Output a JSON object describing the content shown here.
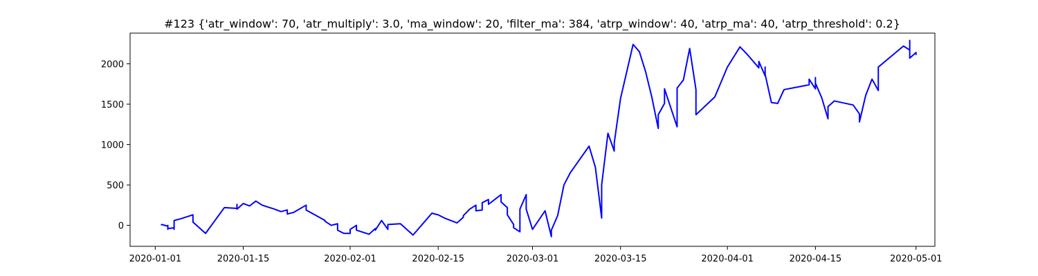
{
  "chart_data": {
    "type": "line",
    "title": "#123 {'atr_window': 70, 'atr_multiply': 3.0, 'ma_window': 20, 'filter_ma': 384, 'atrp_window': 40, 'atrp_ma': 40, 'atrp_threshold': 0.2}",
    "xlabel": "",
    "ylabel": "",
    "x_type": "date",
    "xlim": [
      "2019-12-28",
      "2020-05-04"
    ],
    "ylim": [
      -260,
      2380
    ],
    "x_ticks": [
      "2020-01-01",
      "2020-01-15",
      "2020-02-01",
      "2020-02-15",
      "2020-03-01",
      "2020-03-15",
      "2020-04-01",
      "2020-04-15",
      "2020-05-01"
    ],
    "y_ticks": [
      0,
      500,
      1000,
      1500,
      2000
    ],
    "grid": false,
    "legend": "none",
    "series_color": "#0000ff",
    "series": [
      {
        "points": [
          [
            "2020-01-02",
            0
          ],
          [
            "2020-01-02",
            10
          ],
          [
            "2020-01-03",
            -10
          ],
          [
            "2020-01-03",
            -20
          ],
          [
            "2020-01-03",
            0
          ],
          [
            "2020-01-03",
            -50
          ],
          [
            "2020-01-03",
            -40
          ],
          [
            "2020-01-04",
            -30
          ],
          [
            "2020-01-04",
            -50
          ],
          [
            "2020-01-04",
            60
          ],
          [
            "2020-01-05",
            80
          ],
          [
            "2020-01-07",
            130
          ],
          [
            "2020-01-07",
            120
          ],
          [
            "2020-01-07",
            40
          ],
          [
            "2020-01-09",
            -100
          ],
          [
            "2020-01-12",
            220
          ],
          [
            "2020-01-14",
            210
          ],
          [
            "2020-01-14",
            260
          ],
          [
            "2020-01-14",
            200
          ],
          [
            "2020-01-15",
            270
          ],
          [
            "2020-01-16",
            240
          ],
          [
            "2020-01-17",
            300
          ],
          [
            "2020-01-18",
            250
          ],
          [
            "2020-01-20",
            200
          ],
          [
            "2020-01-21",
            170
          ],
          [
            "2020-01-22",
            190
          ],
          [
            "2020-01-22",
            140
          ],
          [
            "2020-01-23",
            160
          ],
          [
            "2020-01-25",
            250
          ],
          [
            "2020-01-25",
            190
          ],
          [
            "2020-01-28",
            60
          ],
          [
            "2020-01-28",
            50
          ],
          [
            "2020-01-29",
            0
          ],
          [
            "2020-01-30",
            20
          ],
          [
            "2020-01-30",
            -60
          ],
          [
            "2020-01-31",
            -100
          ],
          [
            "2020-02-01",
            -100
          ],
          [
            "2020-02-01",
            -50
          ],
          [
            "2020-02-02",
            0
          ],
          [
            "2020-02-02",
            -60
          ],
          [
            "2020-02-04",
            -110
          ],
          [
            "2020-02-05",
            -40
          ],
          [
            "2020-02-05",
            -60
          ],
          [
            "2020-02-06",
            60
          ],
          [
            "2020-02-07",
            -50
          ],
          [
            "2020-02-07",
            10
          ],
          [
            "2020-02-09",
            20
          ],
          [
            "2020-02-11",
            -120
          ],
          [
            "2020-02-13",
            60
          ],
          [
            "2020-02-14",
            150
          ],
          [
            "2020-02-15",
            130
          ],
          [
            "2020-02-16",
            90
          ],
          [
            "2020-02-18",
            30
          ],
          [
            "2020-02-19",
            100
          ],
          [
            "2020-02-19",
            120
          ],
          [
            "2020-02-20",
            200
          ],
          [
            "2020-02-21",
            250
          ],
          [
            "2020-02-21",
            180
          ],
          [
            "2020-02-22",
            190
          ],
          [
            "2020-02-22",
            280
          ],
          [
            "2020-02-23",
            320
          ],
          [
            "2020-02-23",
            260
          ],
          [
            "2020-02-25",
            380
          ],
          [
            "2020-02-25",
            290
          ],
          [
            "2020-02-26",
            220
          ],
          [
            "2020-02-26",
            130
          ],
          [
            "2020-02-27",
            10
          ],
          [
            "2020-02-27",
            -30
          ],
          [
            "2020-02-28",
            -80
          ],
          [
            "2020-02-28",
            200
          ],
          [
            "2020-02-29",
            380
          ],
          [
            "2020-02-29",
            200
          ],
          [
            "2020-03-01",
            -50
          ],
          [
            "2020-03-03",
            180
          ],
          [
            "2020-03-04",
            -140
          ],
          [
            "2020-03-04",
            -60
          ],
          [
            "2020-03-05",
            120
          ],
          [
            "2020-03-06",
            500
          ],
          [
            "2020-03-07",
            650
          ],
          [
            "2020-03-10",
            980
          ],
          [
            "2020-03-11",
            720
          ],
          [
            "2020-03-12",
            90
          ],
          [
            "2020-03-12",
            500
          ],
          [
            "2020-03-13",
            1140
          ],
          [
            "2020-03-14",
            920
          ],
          [
            "2020-03-14",
            1020
          ],
          [
            "2020-03-15",
            1570
          ],
          [
            "2020-03-17",
            2240
          ],
          [
            "2020-03-18",
            2150
          ],
          [
            "2020-03-19",
            1900
          ],
          [
            "2020-03-20",
            1580
          ],
          [
            "2020-03-21",
            1200
          ],
          [
            "2020-03-21",
            1370
          ],
          [
            "2020-03-22",
            1510
          ],
          [
            "2020-03-22",
            1690
          ],
          [
            "2020-03-24",
            1220
          ],
          [
            "2020-03-24",
            1700
          ],
          [
            "2020-03-25",
            1800
          ],
          [
            "2020-03-26",
            2190
          ],
          [
            "2020-03-27",
            1680
          ],
          [
            "2020-03-27",
            1370
          ],
          [
            "2020-03-30",
            1590
          ],
          [
            "2020-04-01",
            1960
          ],
          [
            "2020-04-03",
            2210
          ],
          [
            "2020-04-04",
            2130
          ],
          [
            "2020-04-06",
            1950
          ],
          [
            "2020-04-06",
            2030
          ],
          [
            "2020-04-07",
            1850
          ],
          [
            "2020-04-07",
            1960
          ],
          [
            "2020-04-07",
            1870
          ],
          [
            "2020-04-08",
            1520
          ],
          [
            "2020-04-09",
            1510
          ],
          [
            "2020-04-10",
            1680
          ],
          [
            "2020-04-14",
            1740
          ],
          [
            "2020-04-14",
            1810
          ],
          [
            "2020-04-15",
            1690
          ],
          [
            "2020-04-15",
            1830
          ],
          [
            "2020-04-15",
            1760
          ],
          [
            "2020-04-16",
            1580
          ],
          [
            "2020-04-17",
            1320
          ],
          [
            "2020-04-17",
            1470
          ],
          [
            "2020-04-18",
            1540
          ],
          [
            "2020-04-21",
            1490
          ],
          [
            "2020-04-22",
            1380
          ],
          [
            "2020-04-22",
            1280
          ],
          [
            "2020-04-23",
            1610
          ],
          [
            "2020-04-24",
            1810
          ],
          [
            "2020-04-25",
            1670
          ],
          [
            "2020-04-25",
            1960
          ],
          [
            "2020-04-29",
            2220
          ],
          [
            "2020-04-30",
            2170
          ],
          [
            "2020-04-30",
            2290
          ],
          [
            "2020-04-30",
            2070
          ],
          [
            "2020-05-01",
            2140
          ],
          [
            "2020-05-01",
            2110
          ]
        ]
      }
    ]
  }
}
